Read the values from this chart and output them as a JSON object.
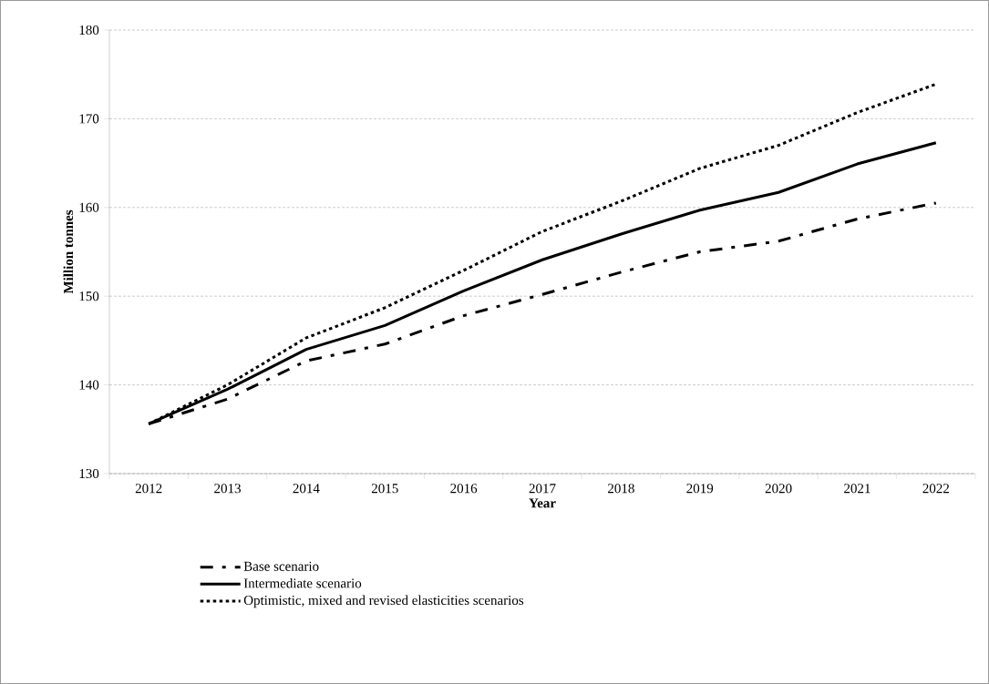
{
  "chart_data": {
    "type": "line",
    "xlabel": "Year",
    "ylabel": "Million tonnes",
    "categories": [
      "2012",
      "2013",
      "2014",
      "2015",
      "2016",
      "2017",
      "2018",
      "2019",
      "2020",
      "2021",
      "2022"
    ],
    "series": [
      {
        "name": "Base scenario",
        "color": "#000000",
        "line_style": "dashdot",
        "values": [
          135.6,
          138.4,
          142.7,
          144.6,
          147.8,
          150.2,
          152.7,
          155.0,
          156.2,
          158.7,
          160.5
        ]
      },
      {
        "name": "Intermediate scenario",
        "color": "#000000",
        "line_style": "solid",
        "values": [
          135.6,
          139.5,
          144.0,
          146.7,
          150.6,
          154.1,
          157.0,
          159.7,
          161.7,
          164.9,
          167.3
        ]
      },
      {
        "name": "Optimistic, mixed and revised elasticities scenarios",
        "color": "#000000",
        "line_style": "dotted",
        "values": [
          135.6,
          140.0,
          145.3,
          148.7,
          152.9,
          157.3,
          160.7,
          164.4,
          167.0,
          170.7,
          173.9
        ]
      }
    ],
    "ylim": [
      130,
      180
    ],
    "yticks": [
      130,
      140,
      150,
      160,
      170,
      180
    ],
    "grid": "y",
    "legend": "bottom",
    "marker": "none"
  }
}
